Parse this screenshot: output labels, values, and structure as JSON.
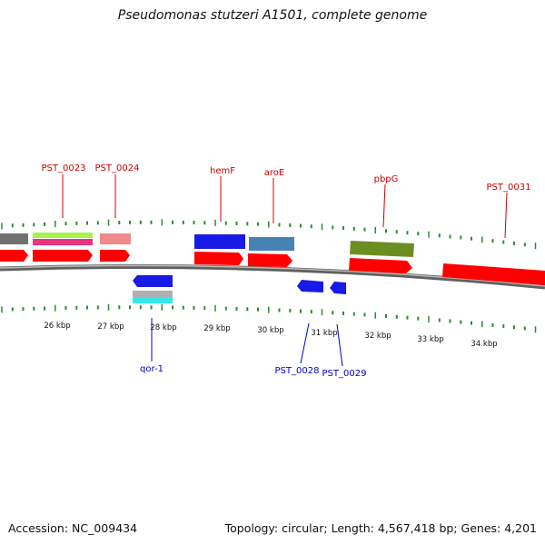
{
  "title": "Pseudomonas stutzeri A1501, complete genome",
  "footer": {
    "accession": "Accession: NC_009434",
    "summary": "Topology: circular; Length: 4,567,418 bp; Genes: 4,201"
  },
  "colors": {
    "backbone": "#808080",
    "cds": "#ff0000",
    "label_top": "#cc0000",
    "label_bottom": "#0000cc",
    "tick": "#2e8b2e"
  },
  "scale_labels": [
    "26 kbp",
    "27 kbp",
    "28 kbp",
    "29 kbp",
    "30 kbp",
    "31 kbp",
    "32 kbp",
    "33 kbp",
    "34 kbp"
  ],
  "gene_labels_top": [
    "PST_0023",
    "PST_0024",
    "hemF",
    "aroE",
    "pbpG",
    "PST_0031"
  ],
  "gene_labels_bottom": [
    "qor-1",
    "PST_0028",
    "PST_0029"
  ]
}
